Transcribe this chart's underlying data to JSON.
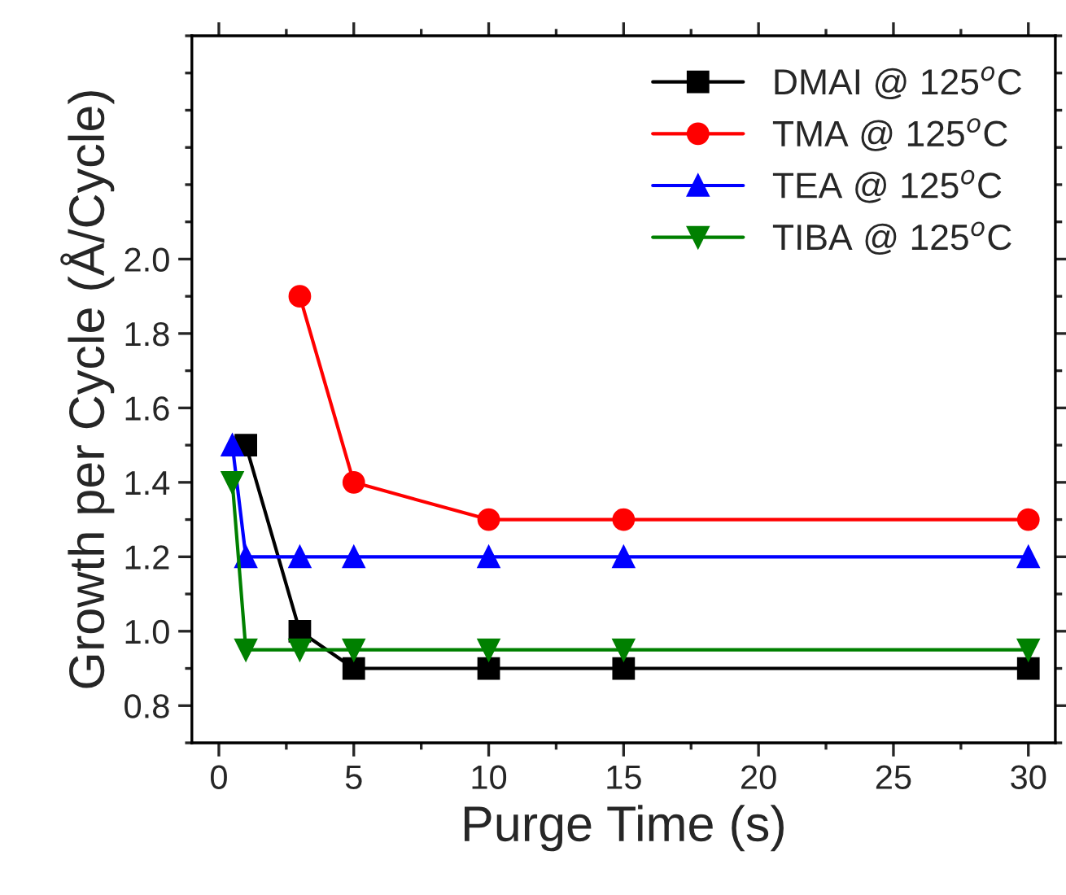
{
  "chart_data": {
    "type": "line",
    "xlabel": "Purge Time (s)",
    "ylabel": "Growth per Cycle (Å/Cycle)",
    "xlim": [
      -1,
      31
    ],
    "xticks": [
      0,
      5,
      10,
      15,
      20,
      25,
      30
    ],
    "ylim": [
      0.7,
      2.6
    ],
    "yticks": [
      0.8,
      {
        "value": 1,
        "label": "1.0"
      },
      1.2,
      1.4,
      1.6,
      1.8,
      {
        "value": 2,
        "label": "2.0"
      }
    ],
    "legend": "top right",
    "grid": false,
    "series": [
      {
        "name": "DMAI @ 125$^{o}$C",
        "color": "#000000",
        "marker": "square",
        "x": [
          1,
          3,
          5,
          10,
          15,
          30
        ],
        "values": [
          1.5,
          1.0,
          0.9,
          0.9,
          0.9,
          0.9
        ]
      },
      {
        "name": "TMA @ 125$^{o}$C",
        "color": "#ff0000",
        "marker": "circle",
        "x": [
          3,
          5,
          10,
          15,
          30
        ],
        "values": [
          1.9,
          1.4,
          1.3,
          1.3,
          1.3
        ]
      },
      {
        "name": "TEA @ 125$^{o}$C",
        "color": "#0000ff",
        "marker": "triangle",
        "x": [
          0.5,
          1,
          3,
          5,
          10,
          15,
          30
        ],
        "values": [
          1.5,
          1.2,
          1.2,
          1.2,
          1.2,
          1.2,
          1.2
        ]
      },
      {
        "name": "TIBA @ 125$^{o}$C",
        "color": "#008000",
        "marker": "triangle_down",
        "x": [
          0.5,
          1,
          3,
          5,
          10,
          15,
          30
        ],
        "values": [
          1.4,
          0.95,
          0.95,
          0.95,
          0.95,
          0.95,
          0.95
        ]
      }
    ]
  }
}
